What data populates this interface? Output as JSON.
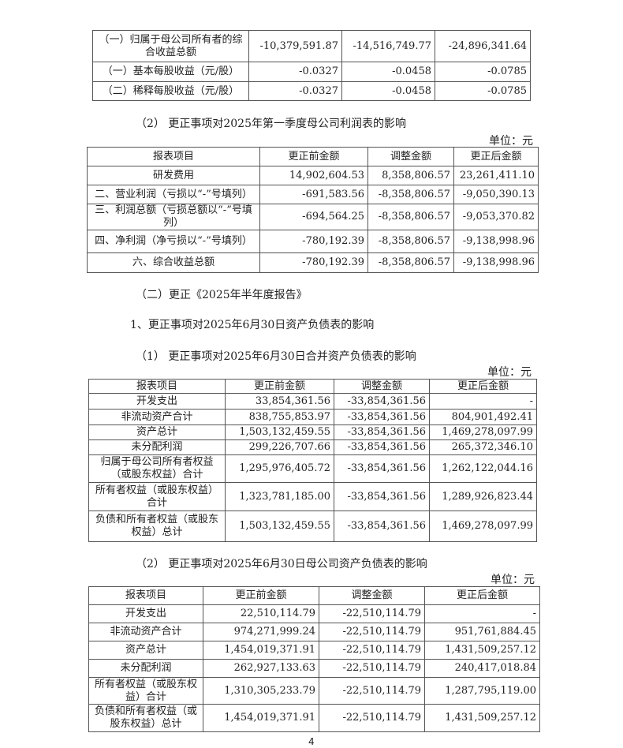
{
  "table_top": {
    "rows": [
      [
        "（一）归属于母公司所有者的综合收益总额",
        "-10,379,591.87",
        "-14,516,749.77",
        "-24,896,341.64"
      ],
      [
        "（一）基本每股收益（元/股）",
        "-0.0327",
        "-0.0458",
        "-0.0785"
      ],
      [
        "（二）稀释每股收益（元/股）",
        "-0.0327",
        "-0.0458",
        "-0.0785"
      ]
    ]
  },
  "section_q1_parent": {
    "heading": "（2）  更正事项对2025年第一季度母公司利润表的影响",
    "unit": "单位：元",
    "headers": [
      "报表项目",
      "更正前金额",
      "调整金额",
      "更正后金额"
    ],
    "rows": [
      [
        "研发费用",
        "14,902,604.53",
        "8,358,806.57",
        "23,261,411.10"
      ],
      [
        "二、营业利润（亏损以“-”号填列）",
        "-691,583.56",
        "-8,358,806.57",
        "-9,050,390.13"
      ],
      [
        "三、利润总额（亏损总额以“-”号填列）",
        "-694,564.25",
        "-8,358,806.57",
        "-9,053,370.82"
      ],
      [
        "四、净利润（净亏损以“-”号填列）",
        "-780,192.39",
        "-8,358,806.57",
        "-9,138,998.96"
      ],
      [
        "六、综合收益总额",
        "-780,192.39",
        "-8,358,806.57",
        "-9,138,998.96"
      ]
    ]
  },
  "section_half_year": {
    "heading": "（二）更正《2025年半年度报告》",
    "subheading": "1、更正事项对2025年6月30日资产负债表的影响"
  },
  "section_consolidated": {
    "heading": "（1）  更正事项对2025年6月30日合并资产负债表的影响",
    "unit": "单位：元",
    "headers": [
      "报表项目",
      "更正前金额",
      "调整金额",
      "更正后金额"
    ],
    "rows": [
      [
        "开发支出",
        "33,854,361.56",
        "-33,854,361.56",
        "-"
      ],
      [
        "非流动资产合计",
        "838,755,853.97",
        "-33,854,361.56",
        "804,901,492.41"
      ],
      [
        "资产总计",
        "1,503,132,459.55",
        "-33,854,361.56",
        "1,469,278,097.99"
      ],
      [
        "未分配利润",
        "299,226,707.66",
        "-33,854,361.56",
        "265,372,346.10"
      ],
      [
        "归属于母公司所有者权益（或股东权益）合计",
        "1,295,976,405.72",
        "-33,854,361.56",
        "1,262,122,044.16"
      ],
      [
        "所有者权益（或股东权益）合计",
        "1,323,781,185.00",
        "-33,854,361.56",
        "1,289,926,823.44"
      ],
      [
        "负债和所有者权益（或股东权益）总计",
        "1,503,132,459.55",
        "-33,854,361.56",
        "1,469,278,097.99"
      ]
    ]
  },
  "section_parent_bs": {
    "heading": "（2）  更正事项对2025年6月30日母公司资产负债表的影响",
    "unit": "单位：元",
    "headers": [
      "报表项目",
      "更正前金额",
      "调整金额",
      "更正后金额"
    ],
    "rows": [
      [
        "开发支出",
        "22,510,114.79",
        "-22,510,114.79",
        "-"
      ],
      [
        "非流动资产合计",
        "974,271,999.24",
        "-22,510,114.79",
        "951,761,884.45"
      ],
      [
        "资产总计",
        "1,454,019,371.91",
        "-22,510,114.79",
        "1,431,509,257.12"
      ],
      [
        "未分配利润",
        "262,927,133.63",
        "-22,510,114.79",
        "240,417,018.84"
      ],
      [
        "所有者权益（或股东权益）合计",
        "1,310,305,233.79",
        "-22,510,114.79",
        "1,287,795,119.00"
      ],
      [
        "负债和所有者权益（或股东权益）总计",
        "1,454,019,371.91",
        "-22,510,114.79",
        "1,431,509,257.12"
      ]
    ]
  },
  "page_number": "4"
}
